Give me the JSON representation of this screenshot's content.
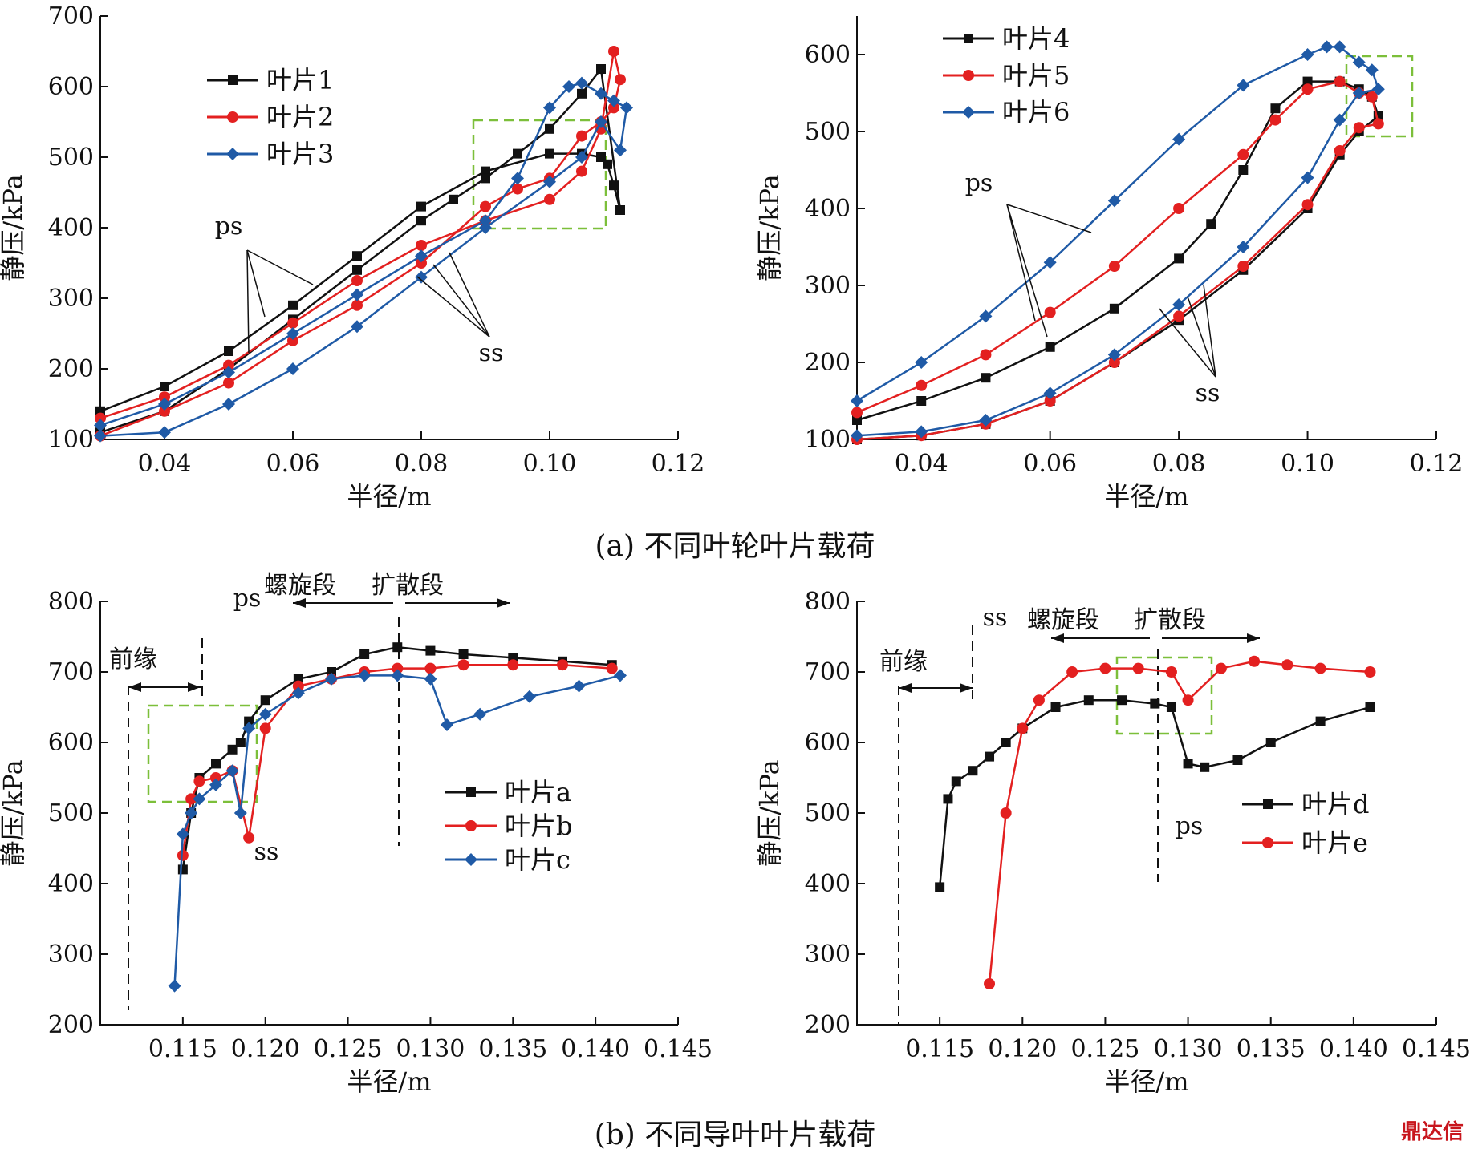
{
  "figure": {
    "caption_a": "(a) 不同叶轮叶片载荷",
    "caption_b": "(b) 不同导叶叶片载荷",
    "watermark": "鼎达信"
  },
  "chart_data": [
    {
      "type": "line",
      "xlabel": "半径/m",
      "ylabel": "静压/kPa",
      "xlim": [
        0.03,
        0.12
      ],
      "ylim": [
        100,
        700
      ],
      "xticks": [
        "0.04",
        "0.06",
        "0.08",
        "0.10",
        "0.12"
      ],
      "yticks": [
        "100",
        "200",
        "300",
        "400",
        "500",
        "600",
        "700"
      ],
      "legend_position": "top-left",
      "annotations": [
        "ps",
        "ss"
      ],
      "series": [
        {
          "name": "叶片1",
          "color": "#111111",
          "marker": "square",
          "x": [
            0.03,
            0.04,
            0.05,
            0.06,
            0.07,
            0.08,
            0.09,
            0.1,
            0.105,
            0.108,
            0.109,
            0.11,
            0.111,
            0.108,
            0.105,
            0.1,
            0.095,
            0.09,
            0.085,
            0.08,
            0.07,
            0.06,
            0.05,
            0.04,
            0.03
          ],
          "y": [
            140,
            175,
            225,
            290,
            360,
            430,
            480,
            505,
            505,
            500,
            490,
            460,
            425,
            625,
            590,
            540,
            505,
            470,
            440,
            410,
            340,
            270,
            200,
            140,
            110
          ]
        },
        {
          "name": "叶片2",
          "color": "#e32020",
          "marker": "circle",
          "x": [
            0.03,
            0.04,
            0.05,
            0.06,
            0.07,
            0.08,
            0.09,
            0.1,
            0.105,
            0.108,
            0.11,
            0.111,
            0.11,
            0.108,
            0.105,
            0.1,
            0.095,
            0.09,
            0.08,
            0.07,
            0.06,
            0.05,
            0.04,
            0.03
          ],
          "y": [
            130,
            160,
            205,
            265,
            325,
            375,
            410,
            440,
            480,
            540,
            650,
            610,
            570,
            550,
            530,
            470,
            455,
            430,
            350,
            290,
            240,
            180,
            140,
            105
          ]
        },
        {
          "name": "叶片3",
          "color": "#1f5aa6",
          "marker": "diamond",
          "x": [
            0.03,
            0.04,
            0.05,
            0.06,
            0.07,
            0.08,
            0.09,
            0.095,
            0.1,
            0.103,
            0.105,
            0.108,
            0.11,
            0.112,
            0.111,
            0.108,
            0.105,
            0.1,
            0.09,
            0.08,
            0.07,
            0.06,
            0.05,
            0.04,
            0.03
          ],
          "y": [
            120,
            150,
            195,
            250,
            305,
            360,
            410,
            470,
            570,
            600,
            605,
            590,
            580,
            570,
            510,
            550,
            500,
            465,
            400,
            330,
            260,
            200,
            150,
            110,
            105
          ]
        }
      ]
    },
    {
      "type": "line",
      "xlabel": "半径/m",
      "ylabel": "静压/kPa",
      "xlim": [
        0.03,
        0.12
      ],
      "ylim": [
        100,
        650
      ],
      "xticks": [
        "0.04",
        "0.06",
        "0.08",
        "0.10",
        "0.12"
      ],
      "yticks": [
        "100",
        "200",
        "300",
        "400",
        "500",
        "600"
      ],
      "legend_position": "top-left",
      "annotations": [
        "ps",
        "ss"
      ],
      "series": [
        {
          "name": "叶片4",
          "color": "#111111",
          "marker": "square",
          "x": [
            0.03,
            0.04,
            0.05,
            0.06,
            0.07,
            0.08,
            0.085,
            0.09,
            0.095,
            0.1,
            0.105,
            0.108,
            0.11,
            0.111,
            0.108,
            0.105,
            0.1,
            0.09,
            0.08,
            0.07,
            0.06,
            0.05,
            0.04,
            0.03
          ],
          "y": [
            125,
            150,
            180,
            220,
            270,
            335,
            380,
            450,
            530,
            565,
            565,
            555,
            545,
            520,
            500,
            470,
            400,
            320,
            255,
            200,
            150,
            120,
            105,
            100
          ]
        },
        {
          "name": "叶片5",
          "color": "#e32020",
          "marker": "circle",
          "x": [
            0.03,
            0.04,
            0.05,
            0.06,
            0.07,
            0.08,
            0.09,
            0.095,
            0.1,
            0.105,
            0.108,
            0.11,
            0.111,
            0.108,
            0.105,
            0.1,
            0.09,
            0.08,
            0.07,
            0.06,
            0.05,
            0.04,
            0.03
          ],
          "y": [
            135,
            170,
            210,
            265,
            325,
            400,
            470,
            515,
            555,
            565,
            550,
            545,
            510,
            505,
            475,
            405,
            325,
            260,
            200,
            150,
            120,
            105,
            100
          ]
        },
        {
          "name": "叶片6",
          "color": "#1f5aa6",
          "marker": "diamond",
          "x": [
            0.03,
            0.04,
            0.05,
            0.06,
            0.07,
            0.08,
            0.09,
            0.1,
            0.103,
            0.105,
            0.108,
            0.11,
            0.111,
            0.108,
            0.105,
            0.1,
            0.09,
            0.08,
            0.07,
            0.06,
            0.05,
            0.04,
            0.03
          ],
          "y": [
            150,
            200,
            260,
            330,
            410,
            490,
            560,
            600,
            610,
            610,
            590,
            580,
            555,
            550,
            515,
            440,
            350,
            275,
            210,
            160,
            125,
            110,
            105
          ]
        }
      ]
    },
    {
      "type": "line",
      "xlabel": "半径/m",
      "ylabel": "静压/kPa",
      "xlim": [
        0.11,
        0.145
      ],
      "ylim": [
        200,
        800
      ],
      "xticks": [
        "0.115",
        "0.120",
        "0.125",
        "0.130",
        "0.135",
        "0.140",
        "0.145"
      ],
      "yticks": [
        "200",
        "300",
        "400",
        "500",
        "600",
        "700",
        "800"
      ],
      "legend_position": "center-right",
      "annotations": [
        "ps",
        "ss",
        "前缘",
        "螺旋段",
        "扩散段"
      ],
      "series": [
        {
          "name": "叶片a",
          "color": "#111111",
          "marker": "square",
          "x": [
            0.115,
            0.1155,
            0.116,
            0.117,
            0.118,
            0.1185,
            0.119,
            0.12,
            0.122,
            0.124,
            0.126,
            0.128,
            0.13,
            0.132,
            0.135,
            0.138,
            0.141
          ],
          "y": [
            420,
            500,
            550,
            570,
            590,
            600,
            630,
            660,
            690,
            700,
            725,
            735,
            730,
            725,
            720,
            715,
            710
          ]
        },
        {
          "name": "叶片b",
          "color": "#e32020",
          "marker": "circle",
          "x": [
            0.115,
            0.1155,
            0.116,
            0.117,
            0.118,
            0.119,
            0.12,
            0.122,
            0.124,
            0.126,
            0.128,
            0.13,
            0.132,
            0.135,
            0.138,
            0.141
          ],
          "y": [
            440,
            520,
            545,
            550,
            560,
            465,
            620,
            680,
            690,
            700,
            705,
            705,
            710,
            710,
            710,
            705
          ]
        },
        {
          "name": "叶片c",
          "color": "#1f5aa6",
          "marker": "diamond",
          "x": [
            0.1145,
            0.115,
            0.1155,
            0.116,
            0.117,
            0.118,
            0.1185,
            0.119,
            0.12,
            0.122,
            0.124,
            0.126,
            0.128,
            0.13,
            0.131,
            0.133,
            0.136,
            0.139,
            0.1415
          ],
          "y": [
            255,
            470,
            500,
            520,
            540,
            560,
            500,
            620,
            640,
            670,
            690,
            695,
            695,
            690,
            625,
            640,
            665,
            680,
            695
          ]
        }
      ]
    },
    {
      "type": "line",
      "xlabel": "半径/m",
      "ylabel": "静压/kPa",
      "xlim": [
        0.11,
        0.145
      ],
      "ylim": [
        200,
        800
      ],
      "xticks": [
        "0.115",
        "0.120",
        "0.125",
        "0.130",
        "0.135",
        "0.140",
        "0.145"
      ],
      "yticks": [
        "200",
        "300",
        "400",
        "500",
        "600",
        "700",
        "800"
      ],
      "legend_position": "center-right",
      "annotations": [
        "ss",
        "ps",
        "前缘",
        "螺旋段",
        "扩散段"
      ],
      "series": [
        {
          "name": "叶片d",
          "color": "#111111",
          "marker": "square",
          "x": [
            0.115,
            0.1155,
            0.116,
            0.117,
            0.118,
            0.119,
            0.12,
            0.122,
            0.124,
            0.126,
            0.128,
            0.129,
            0.13,
            0.131,
            0.133,
            0.135,
            0.138,
            0.141
          ],
          "y": [
            395,
            520,
            545,
            560,
            580,
            600,
            620,
            650,
            660,
            660,
            655,
            650,
            570,
            565,
            575,
            600,
            630,
            650
          ]
        },
        {
          "name": "叶片e",
          "color": "#e32020",
          "marker": "circle",
          "x": [
            0.118,
            0.119,
            0.12,
            0.121,
            0.123,
            0.125,
            0.127,
            0.129,
            0.13,
            0.132,
            0.134,
            0.136,
            0.138,
            0.141
          ],
          "y": [
            258,
            500,
            620,
            660,
            700,
            705,
            705,
            700,
            660,
            705,
            715,
            710,
            705,
            700
          ]
        }
      ]
    }
  ]
}
